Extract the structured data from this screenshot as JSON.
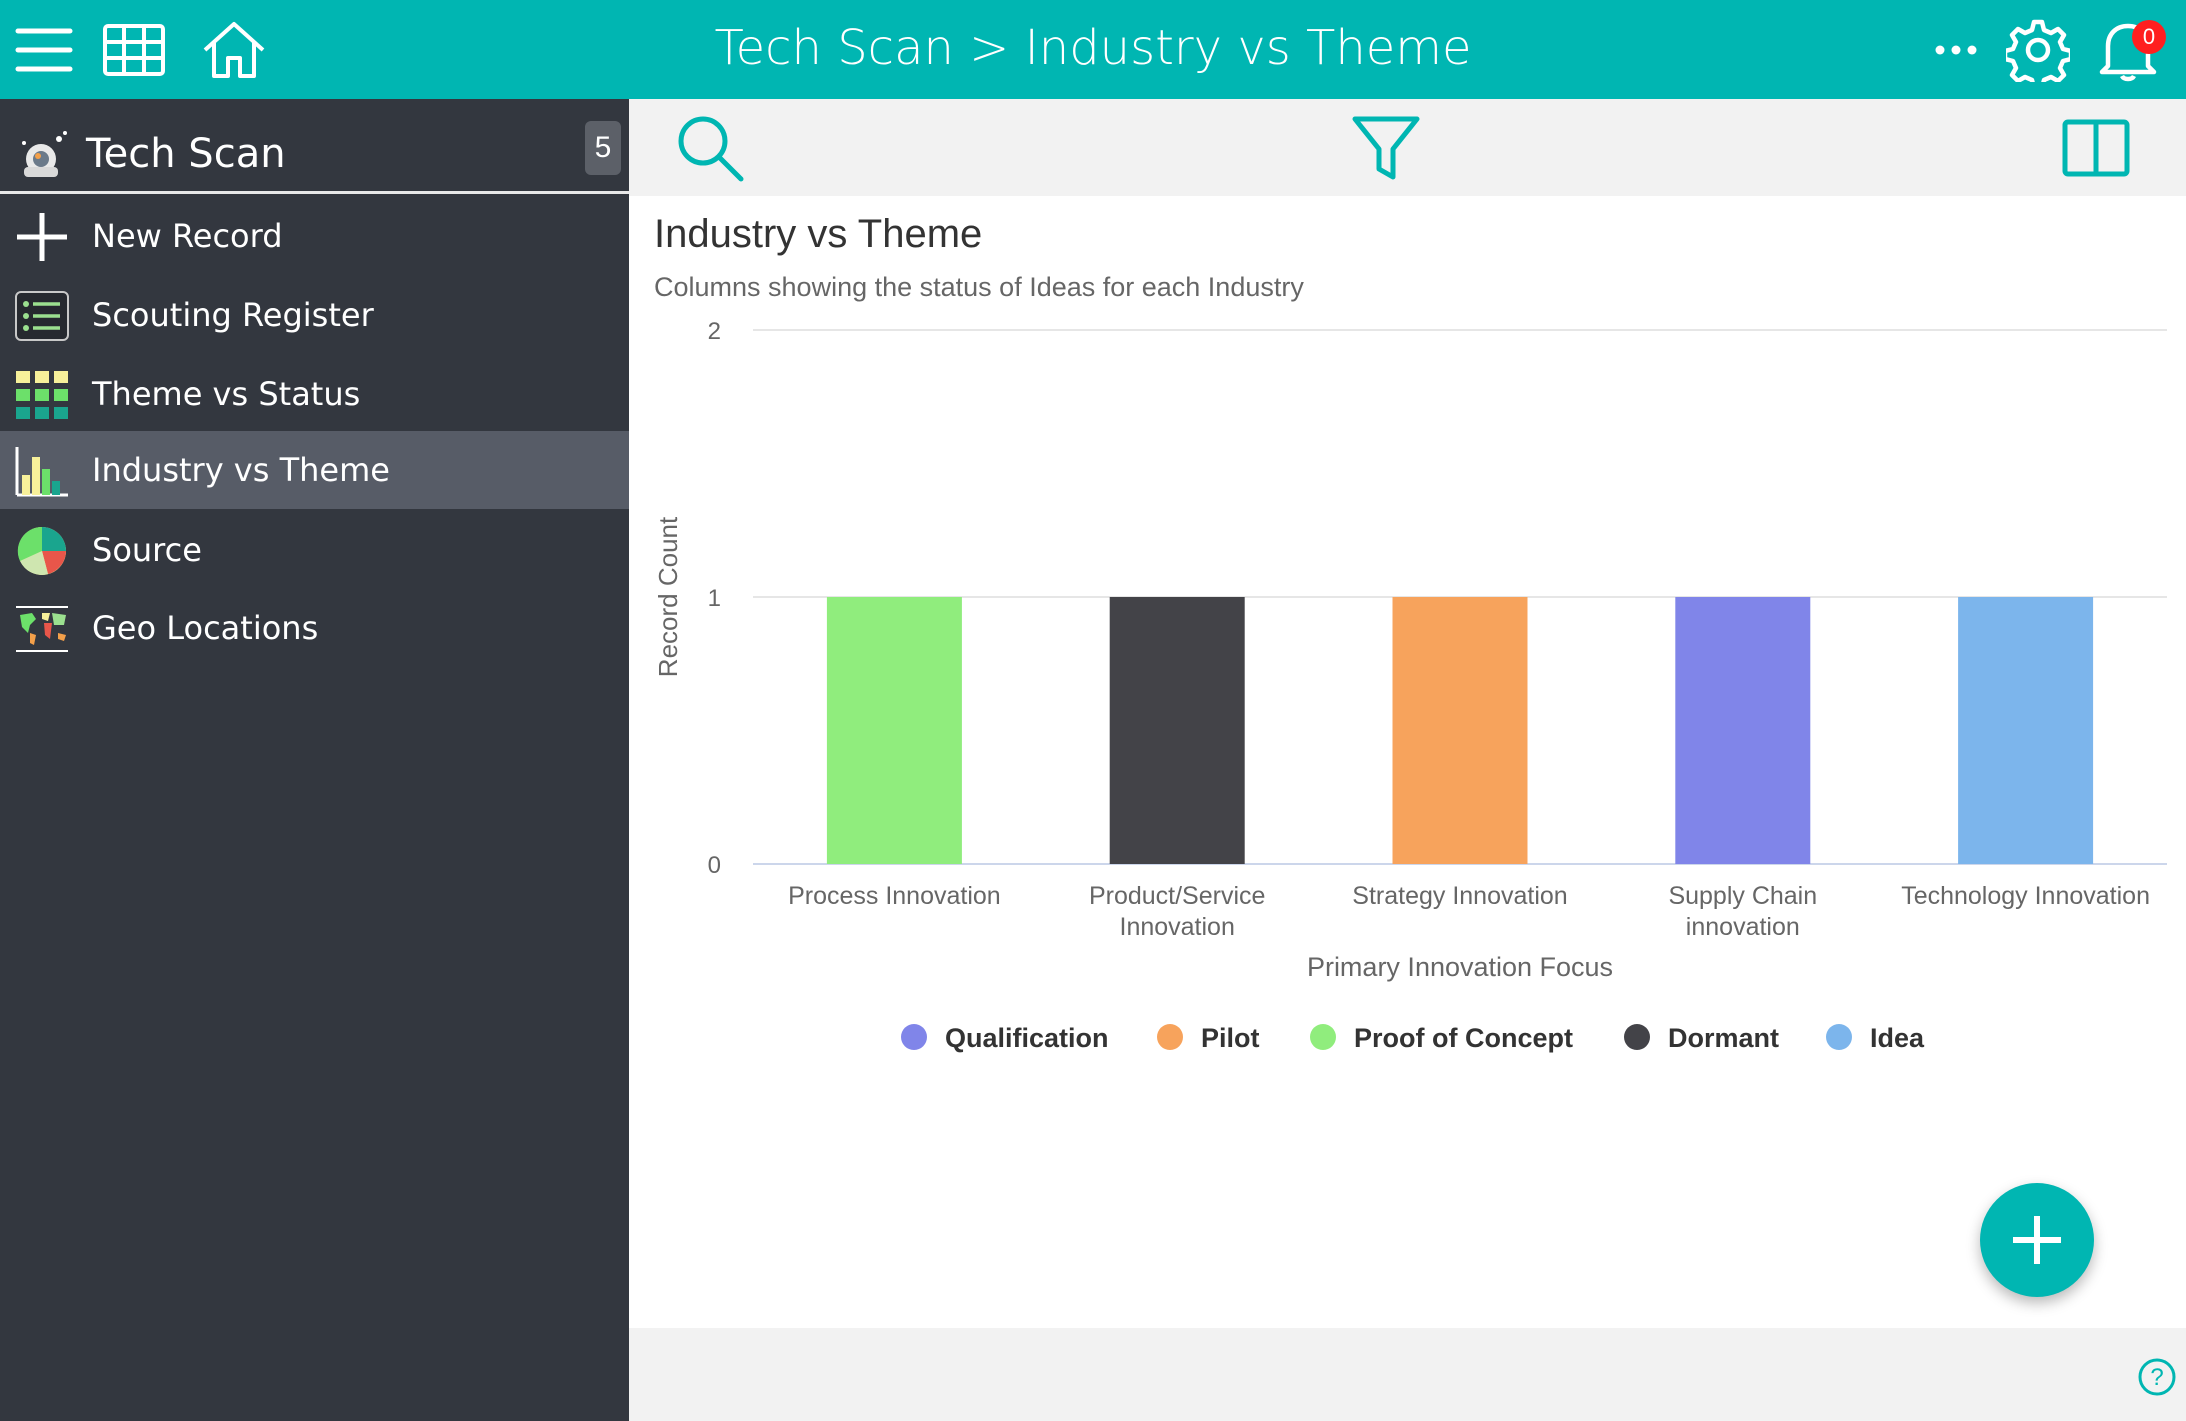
{
  "topbar": {
    "title": "Tech Scan > Industry vs Theme",
    "notification_count": "0",
    "icons": [
      "hamburger-menu-icon",
      "grid-icon",
      "home-icon",
      "more-icon",
      "gear-icon",
      "bell-icon"
    ]
  },
  "sidebar": {
    "app_name": "Tech Scan",
    "count": "5",
    "items": [
      {
        "label": "New Record",
        "icon": "plus-icon",
        "active": false
      },
      {
        "label": "Scouting Register",
        "icon": "list-icon",
        "active": false
      },
      {
        "label": "Theme vs Status",
        "icon": "tile-grid-icon",
        "active": false
      },
      {
        "label": "Industry vs Theme",
        "icon": "bar-chart-icon",
        "active": true
      },
      {
        "label": "Source",
        "icon": "pie-chart-icon",
        "active": false
      },
      {
        "label": "Geo Locations",
        "icon": "world-map-icon",
        "active": false
      }
    ]
  },
  "toolbar": {
    "icons": [
      "search-icon",
      "filter-icon",
      "split-view-icon"
    ]
  },
  "colors": {
    "accent": "#00b6b2",
    "sidebar_bg": "#33373f",
    "sidebar_active": "#575c67",
    "qualification": "#8085e9",
    "pilot": "#f7a35c",
    "proof_of_concept": "#90ed7d",
    "dormant": "#434348",
    "idea": "#7cb5ec"
  },
  "chart_data": {
    "type": "bar",
    "title": "Industry vs Theme",
    "subtitle": "Columns showing the status of Ideas for each Industry",
    "xlabel": "Primary Innovation Focus",
    "ylabel": "Record Count",
    "ylim": [
      0,
      2
    ],
    "yticks": [
      "0",
      "1",
      "2"
    ],
    "grid": true,
    "legend_position": "bottom",
    "categories": [
      "Process Innovation",
      "Product/Service Innovation",
      "Strategy Innovation",
      "Supply Chain innovation",
      "Technology Innovation"
    ],
    "category_lines": [
      [
        "Process Innovation"
      ],
      [
        "Product/Service",
        "Innovation"
      ],
      [
        "Strategy Innovation"
      ],
      [
        "Supply Chain",
        "innovation"
      ],
      [
        "Technology Innovation"
      ]
    ],
    "bars": [
      {
        "category": "Process Innovation",
        "series": "Proof of Concept",
        "value": 1,
        "color": "#90ed7d"
      },
      {
        "category": "Product/Service Innovation",
        "series": "Dormant",
        "value": 1,
        "color": "#434348"
      },
      {
        "category": "Strategy Innovation",
        "series": "Pilot",
        "value": 1,
        "color": "#f7a35c"
      },
      {
        "category": "Supply Chain innovation",
        "series": "Qualification",
        "value": 1,
        "color": "#8085e9"
      },
      {
        "category": "Technology Innovation",
        "series": "Idea",
        "value": 1,
        "color": "#7cb5ec"
      }
    ],
    "legend": [
      {
        "name": "Qualification",
        "color": "#8085e9"
      },
      {
        "name": "Pilot",
        "color": "#f7a35c"
      },
      {
        "name": "Proof of Concept",
        "color": "#90ed7d"
      },
      {
        "name": "Dormant",
        "color": "#434348"
      },
      {
        "name": "Idea",
        "color": "#7cb5ec"
      }
    ]
  }
}
